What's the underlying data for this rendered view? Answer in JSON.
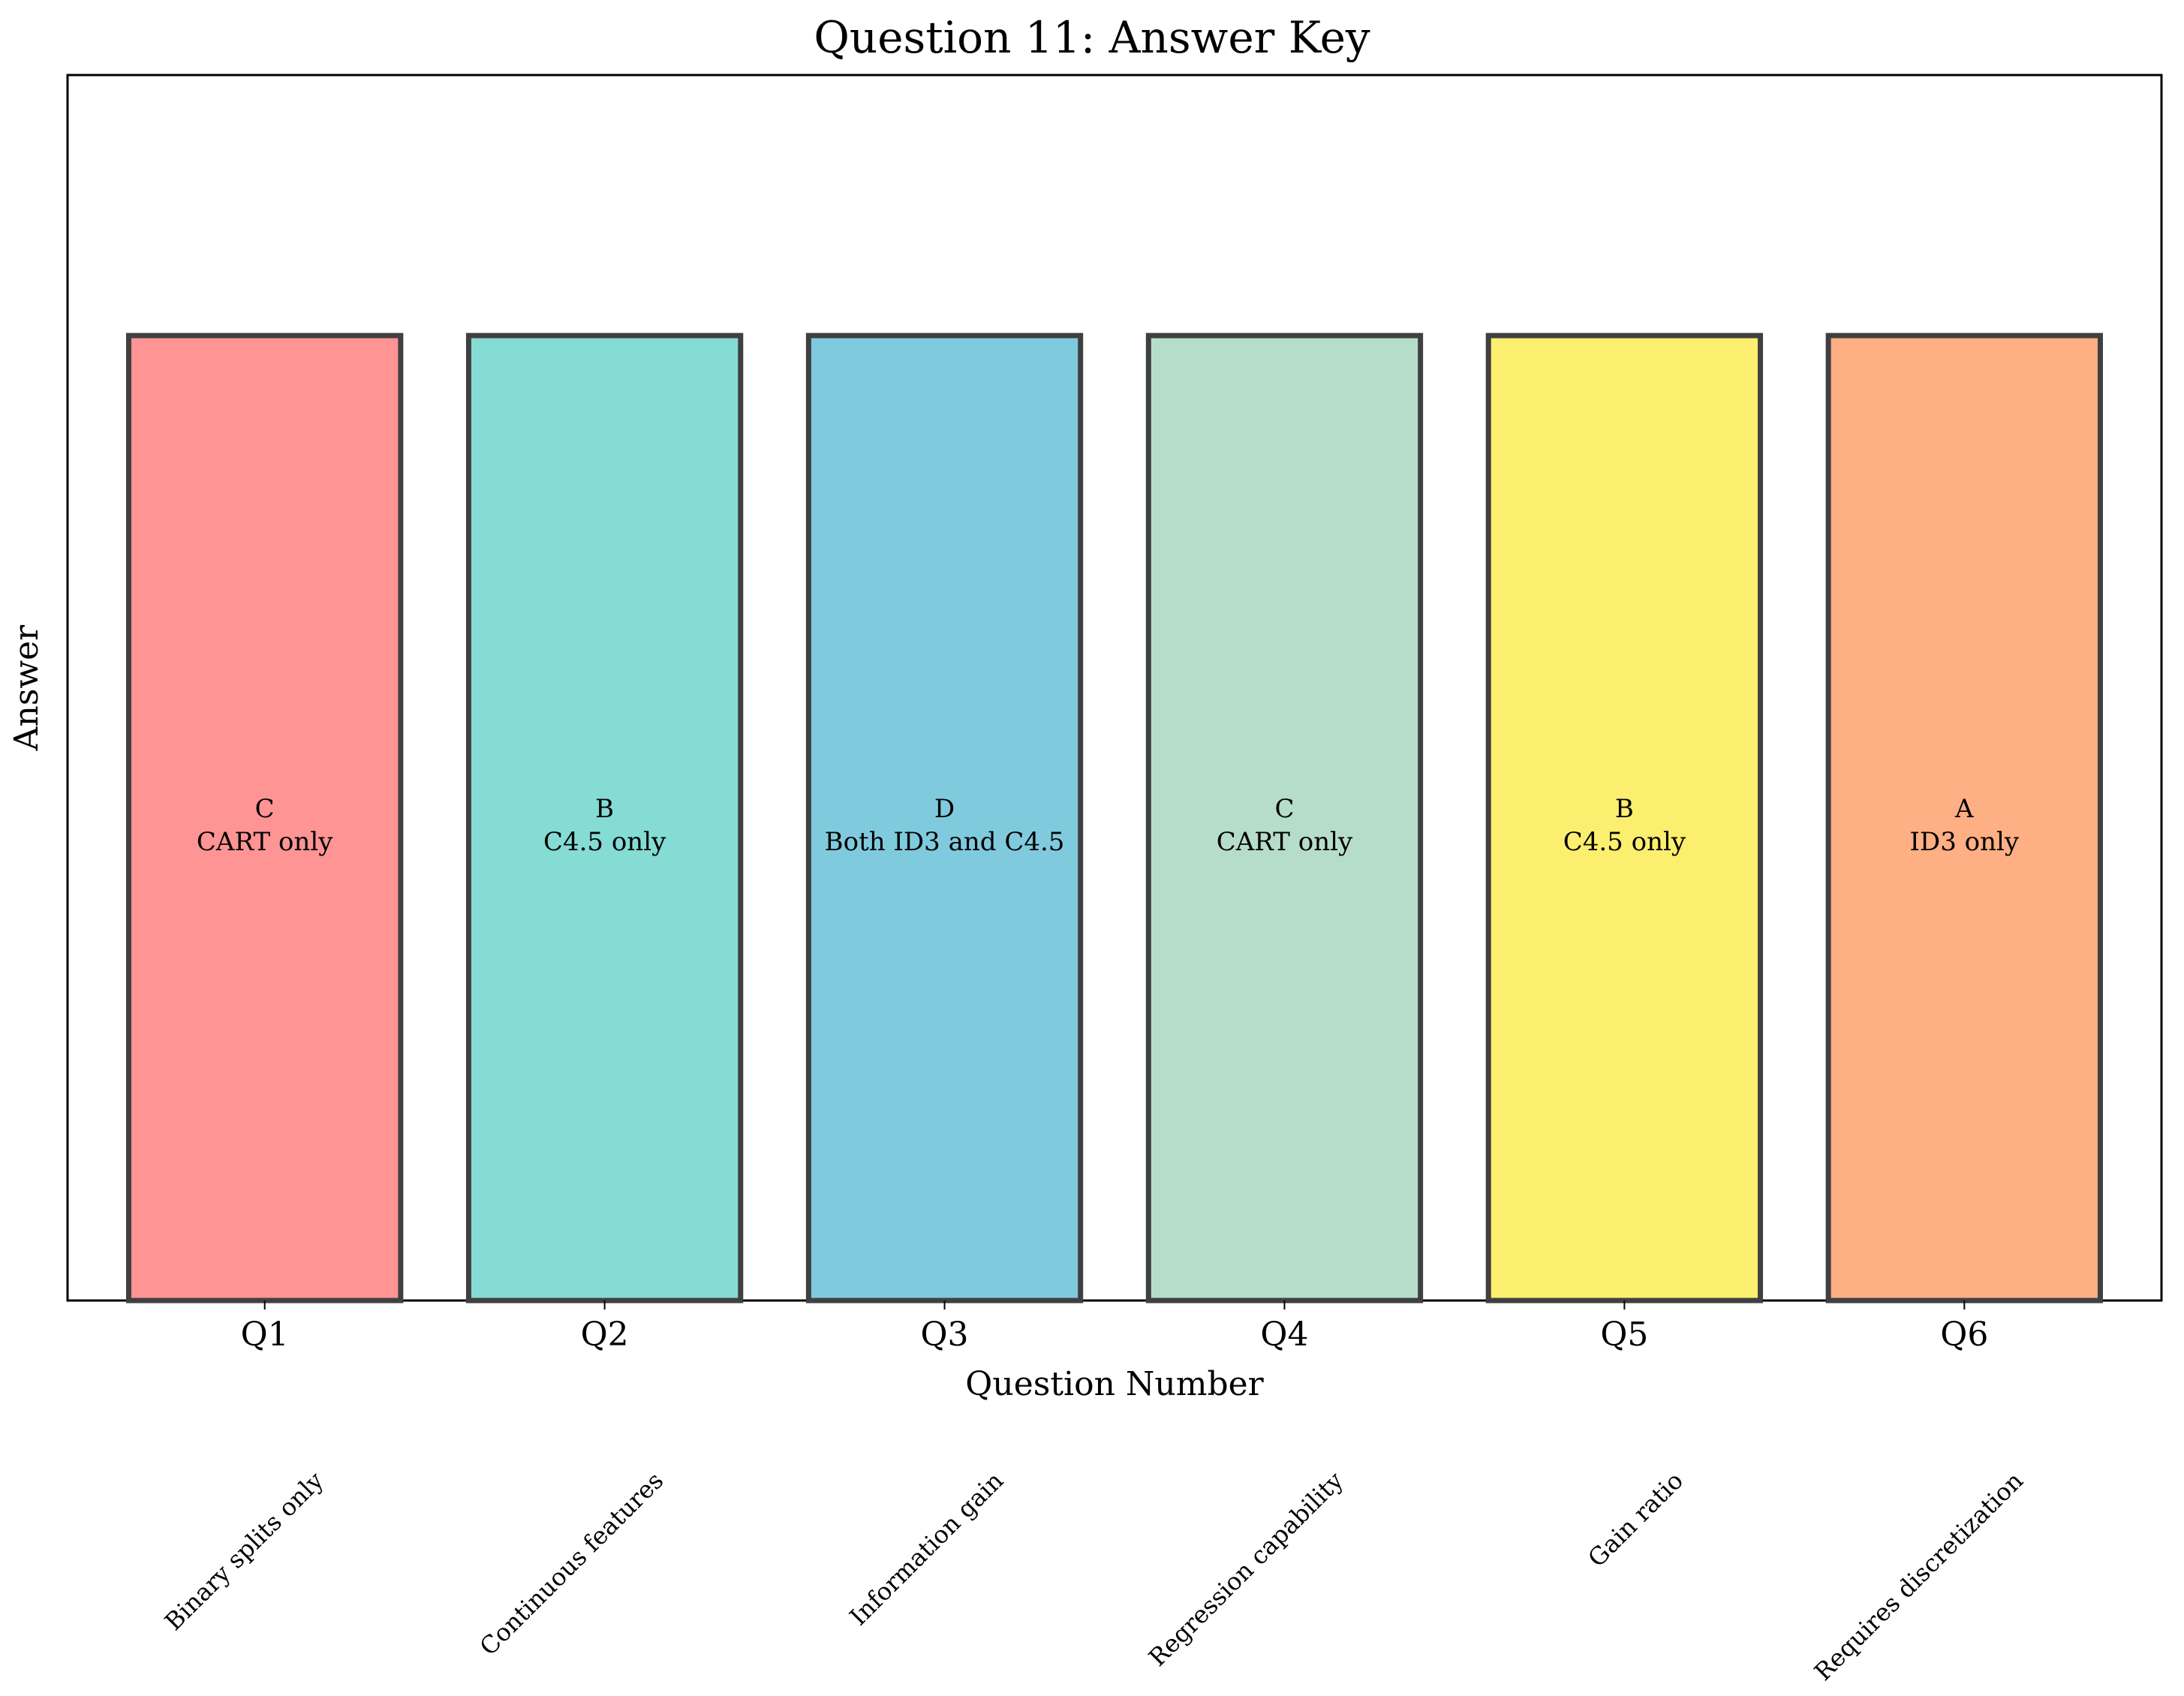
{
  "chart_data": {
    "type": "bar",
    "title": "Question 11: Answer Key",
    "xlabel": "Question Number",
    "ylabel": "Answer",
    "categories": [
      "Q1",
      "Q2",
      "Q3",
      "Q4",
      "Q5",
      "Q6"
    ],
    "values": [
      1,
      1,
      1,
      1,
      1,
      1
    ],
    "ylim": [
      0,
      1.27
    ],
    "y_ticks_visible": false,
    "grid": false,
    "legend": "none",
    "answer_letters": [
      "C",
      "B",
      "D",
      "C",
      "B",
      "A"
    ],
    "answer_texts": [
      "CART only",
      "C4.5 only",
      "Both ID3 and C4.5",
      "CART only",
      "C4.5 only",
      "ID3 only"
    ],
    "descriptions": [
      "Binary splits only",
      "Continuous features",
      "Information gain",
      "Regression capability",
      "Gain ratio",
      "Requires discretization"
    ],
    "colors": [
      "#FF9494",
      "#84DCD4",
      "#80CADE",
      "#B6DDCA",
      "#FCEE6E",
      "#FFAF84"
    ],
    "edge_color": "#404040"
  }
}
